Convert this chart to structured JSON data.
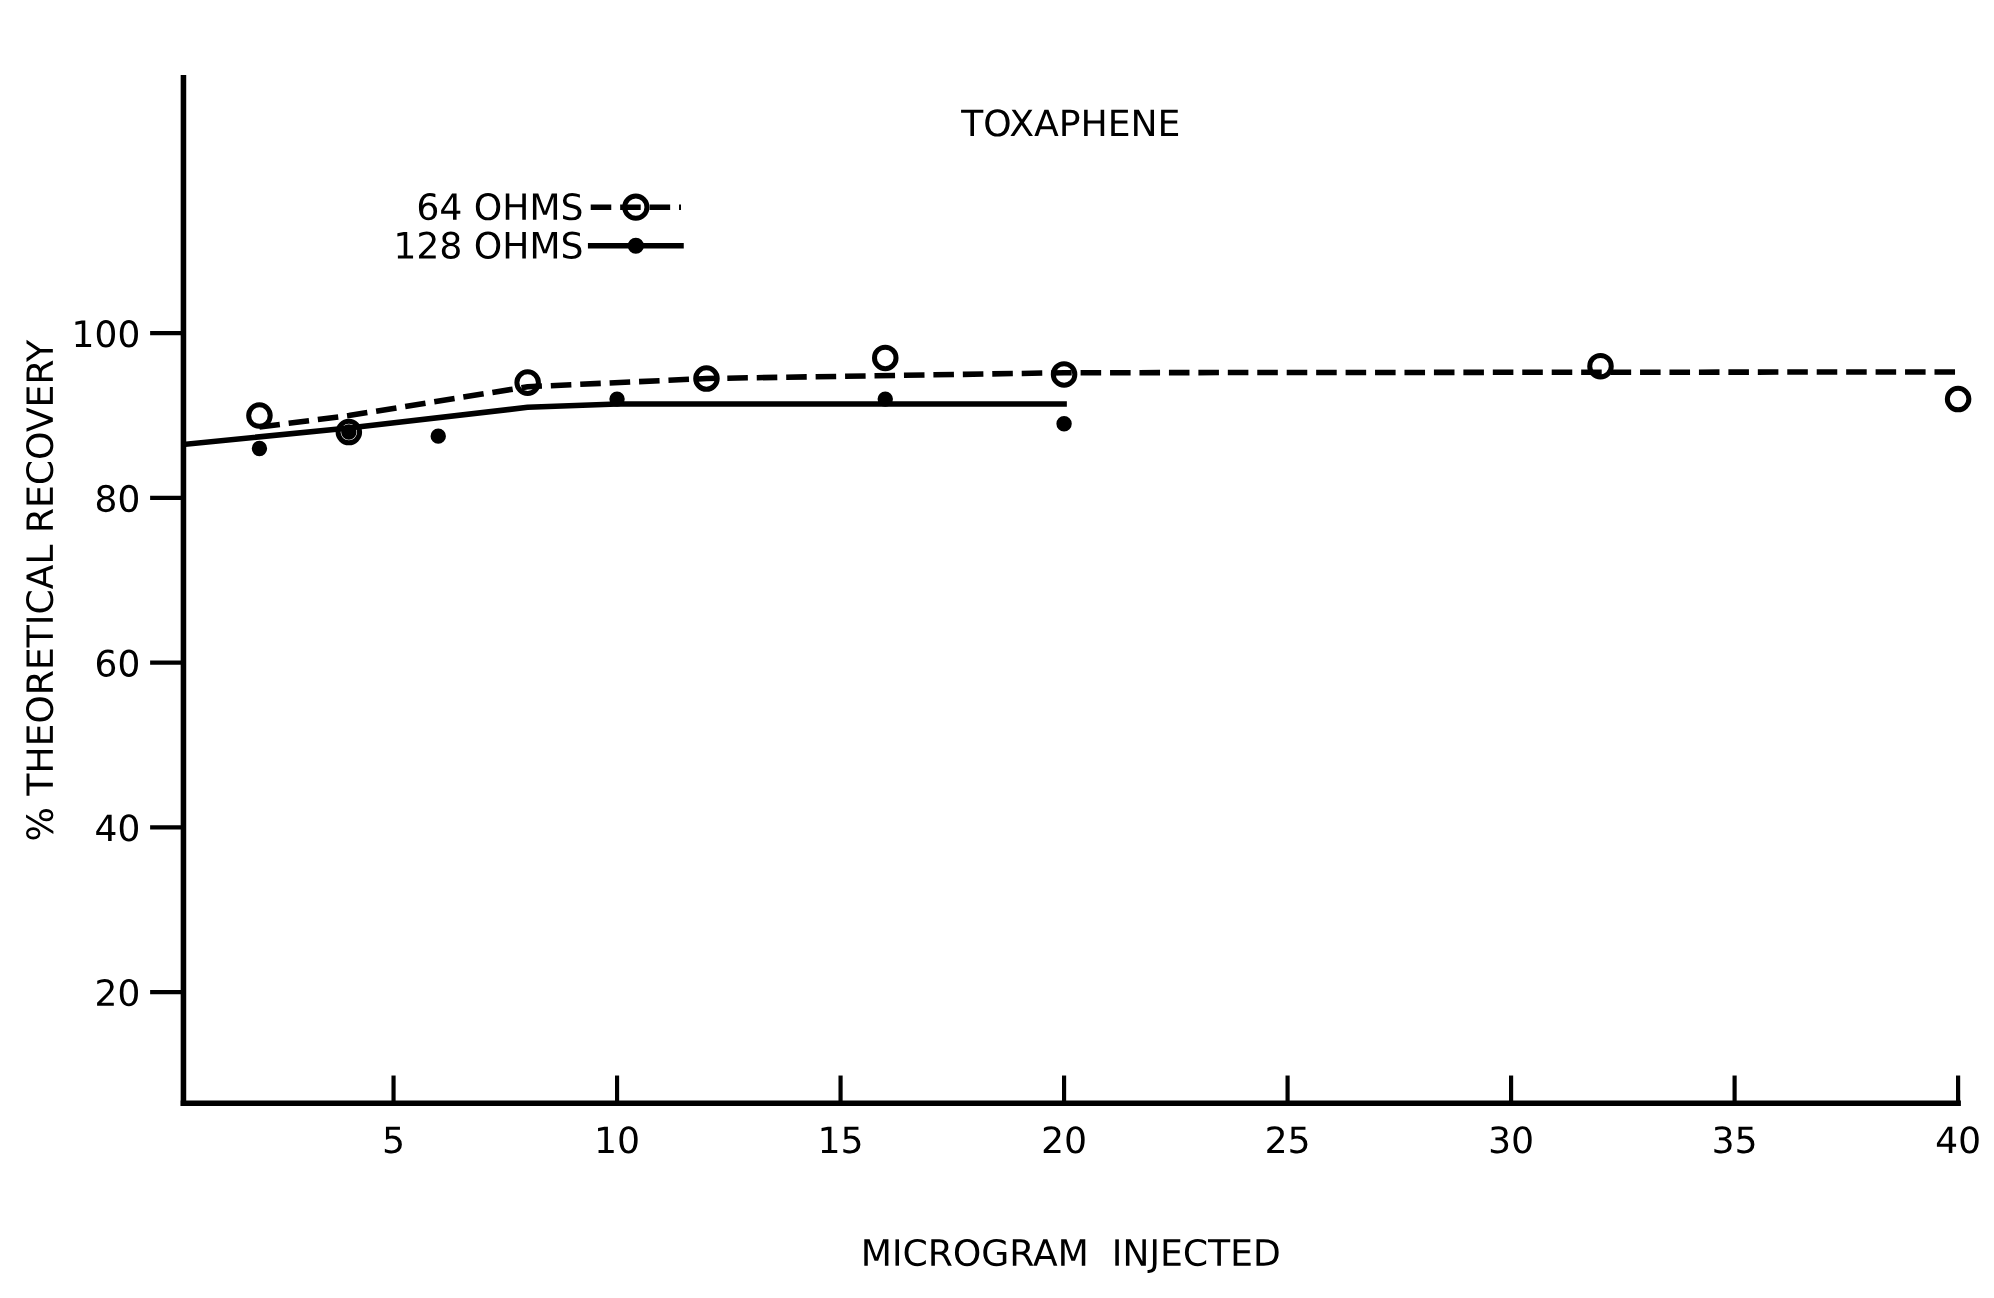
{
  "chart_data": {
    "type": "scatter",
    "title": "TOXAPHENE",
    "xlabel": "MICROGRAM  INJECTED",
    "ylabel": "% THEORETICAL RECOVERY",
    "xlim": [
      0.3,
      40
    ],
    "ylim": [
      6.5,
      131
    ],
    "xticks": [
      5,
      10,
      15,
      20,
      25,
      30,
      35,
      40
    ],
    "yticks": [
      20,
      40,
      60,
      80,
      100
    ],
    "grid": false,
    "legend": "top left",
    "series": [
      {
        "name": "64 OHMS",
        "marker": "circle",
        "line_style": "dashed",
        "color": "#000000",
        "x": [
          2,
          4,
          8,
          12,
          16,
          20,
          32,
          40
        ],
        "values": [
          90,
          88,
          94,
          94.5,
          97,
          95,
          96,
          92
        ]
      },
      {
        "name": "128 OHMS",
        "marker": "circle",
        "line_style": "solid",
        "color": "#000000",
        "x": [
          2,
          4,
          6,
          10,
          16,
          20
        ],
        "values": [
          86,
          88,
          87.5,
          92,
          92,
          89
        ]
      },
      {
        "type": "line",
        "line_style": "dashed",
        "color": "#000000",
        "x": [
          2,
          4,
          8,
          12,
          20,
          40
        ],
        "values": [
          88.6,
          90,
          93.5,
          94.5,
          95.2,
          95.3
        ]
      },
      {
        "type": "line",
        "line_style": "solid",
        "color": "#000000",
        "x": [
          0.3,
          4,
          8,
          10,
          20
        ],
        "values": [
          86.5,
          88.5,
          91,
          91.4,
          91.4
        ]
      }
    ]
  }
}
